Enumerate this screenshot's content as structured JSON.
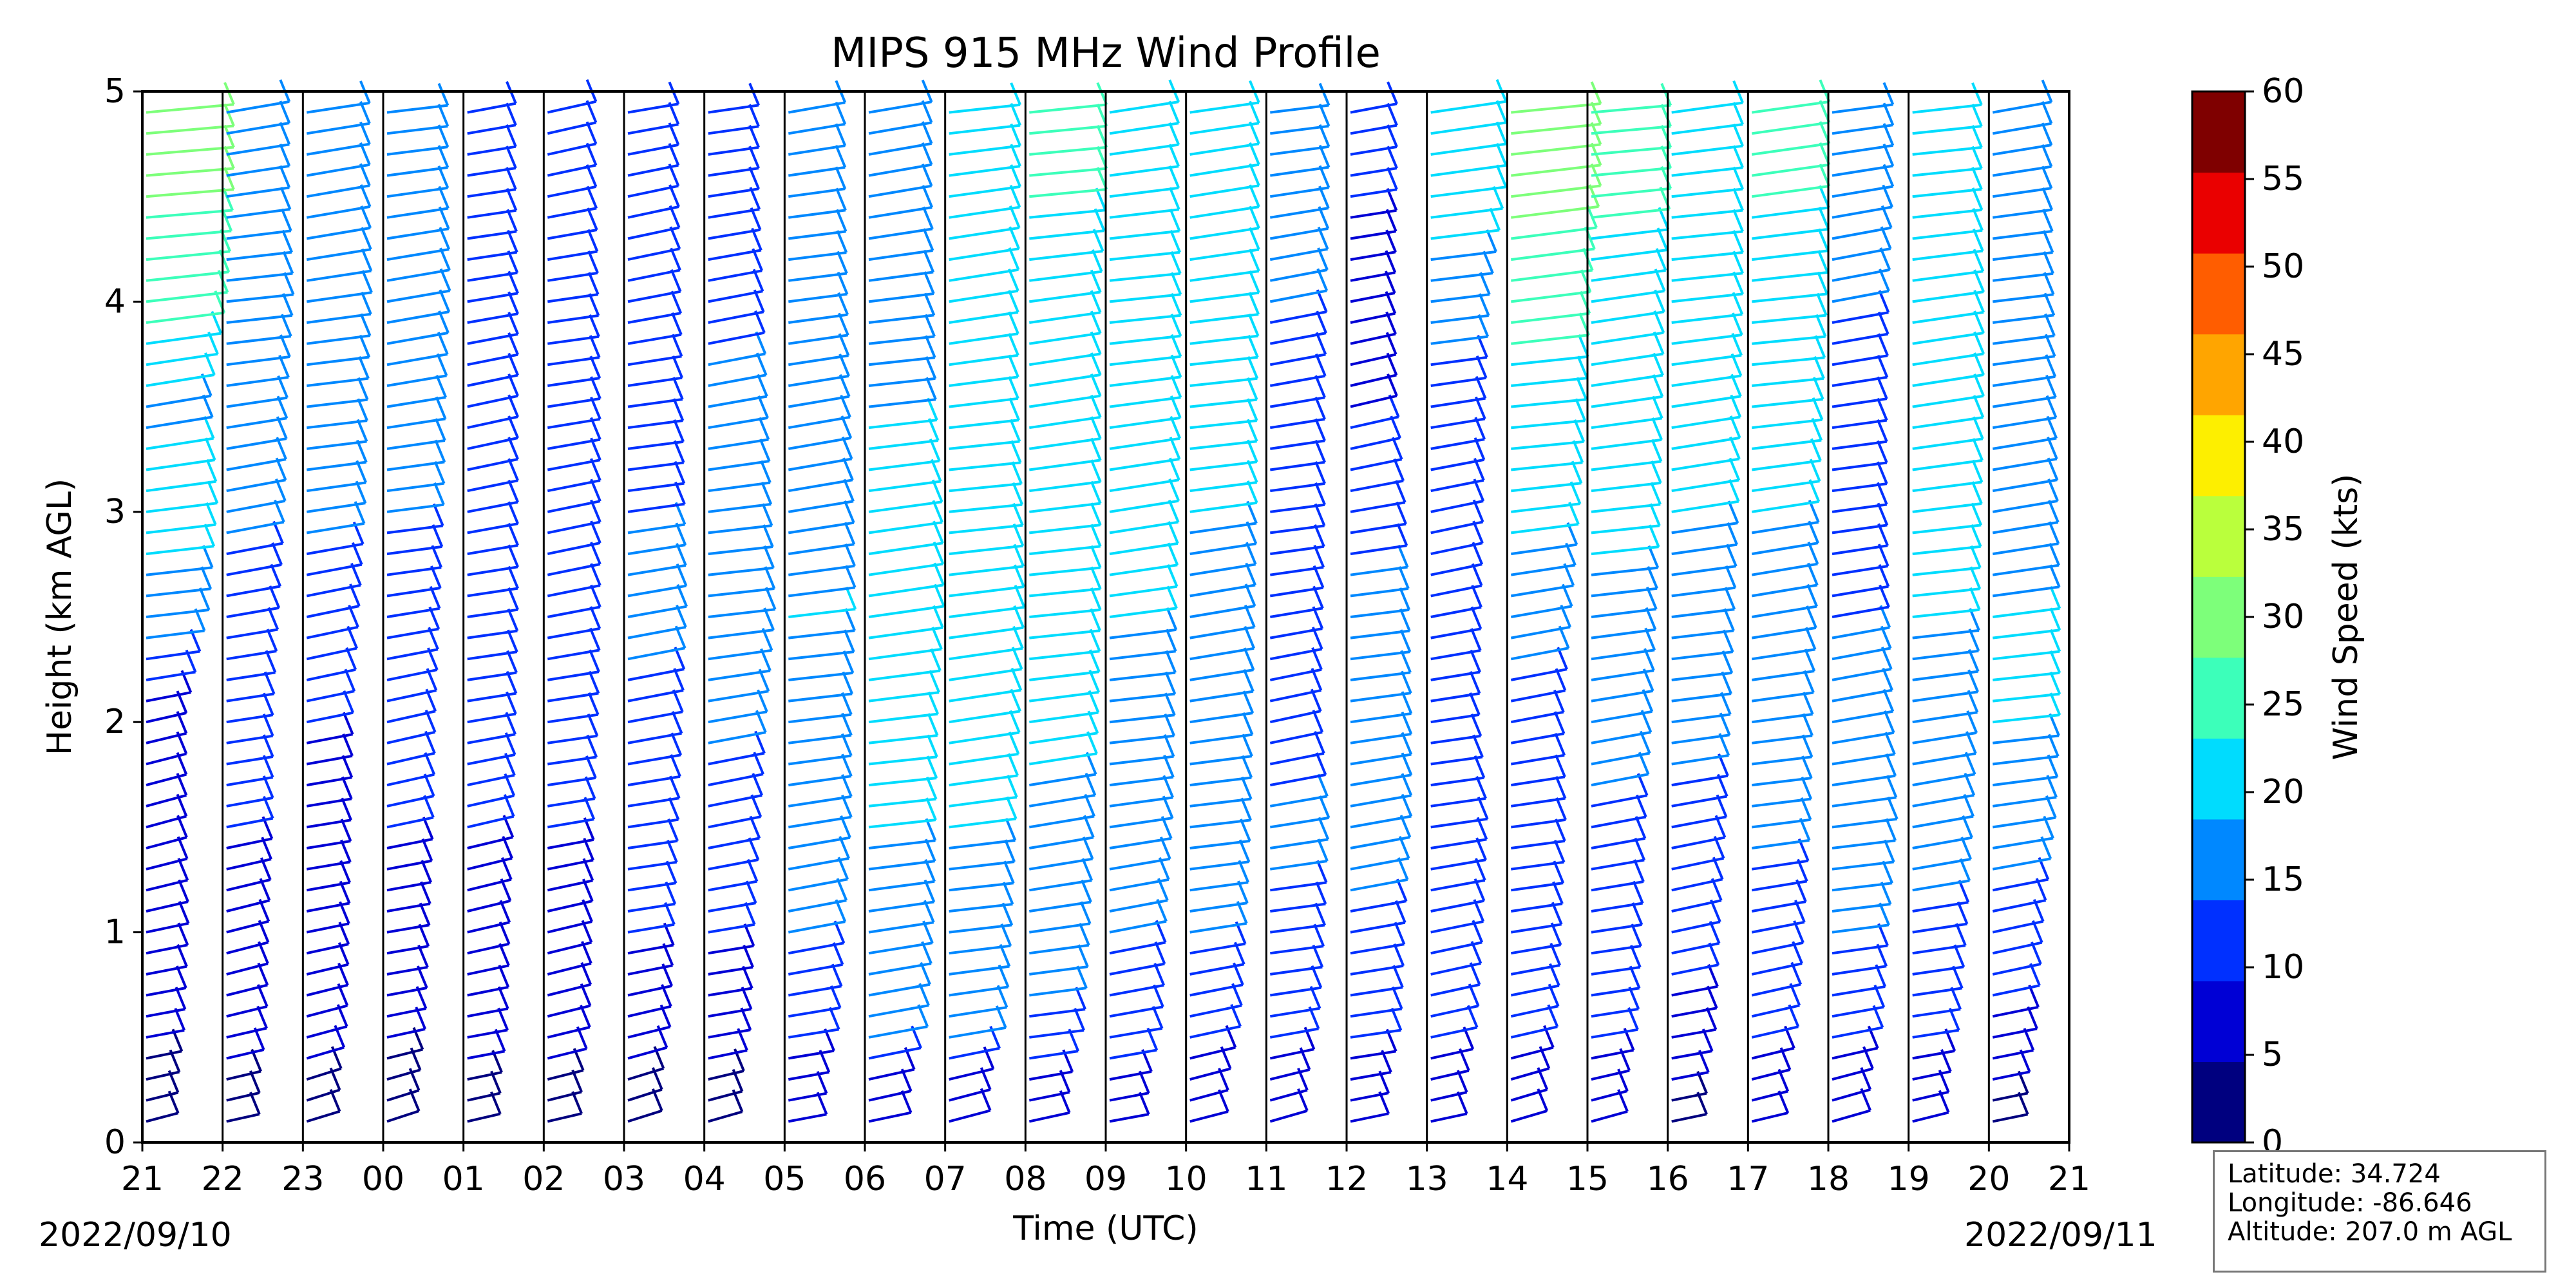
{
  "chart_data": {
    "type": "wind_barbs",
    "title": "MIPS 915 MHz Wind Profile",
    "xlabel": "Time (UTC)",
    "ylabel": "Height (km AGL)",
    "ylim": [
      0,
      5
    ],
    "y_ticks": [
      "0",
      "1",
      "2",
      "3",
      "4",
      "5"
    ],
    "x_ticks": [
      "21",
      "22",
      "23",
      "00",
      "01",
      "02",
      "03",
      "04",
      "05",
      "06",
      "07",
      "08",
      "09",
      "10",
      "11",
      "12",
      "13",
      "14",
      "15",
      "16",
      "17",
      "18",
      "19",
      "20",
      "21"
    ],
    "start_date": "2022/09/10",
    "end_date": "2022/09/11",
    "colorbar": {
      "label": "Wind Speed (kts)",
      "ticks": [
        "0",
        "5",
        "10",
        "15",
        "20",
        "25",
        "30",
        "35",
        "40",
        "45",
        "50",
        "55",
        "60"
      ],
      "colors": [
        "#00007f",
        "#0000d5",
        "#0030ff",
        "#0088ff",
        "#00dcfe",
        "#3cffba",
        "#7dff7a",
        "#baff3c",
        "#fdef00",
        "#ffa500",
        "#ff5d00",
        "#ea0000",
        "#7f0000"
      ]
    },
    "series": [
      {
        "hour": "21",
        "speeds_low_kts": [
          6,
          8,
          7
        ],
        "speeds_mid_kts": [
          7,
          18,
          22
        ],
        "speeds_high_kts": [
          19,
          27,
          30
        ]
      },
      {
        "hour": "22",
        "speeds_low_kts": [
          7,
          8,
          10
        ],
        "speeds_mid_kts": [
          10,
          13,
          16
        ],
        "speeds_high_kts": [
          17,
          20,
          18
        ]
      },
      {
        "hour": "23",
        "speeds_low_kts": [
          7,
          8,
          9
        ],
        "speeds_mid_kts": [
          10,
          13,
          16
        ],
        "speeds_high_kts": [
          17,
          19,
          18
        ]
      },
      {
        "hour": "00",
        "speeds_low_kts": [
          6,
          8,
          10
        ],
        "speeds_mid_kts": [
          11,
          13,
          15
        ],
        "speeds_high_kts": [
          16,
          18,
          17
        ]
      },
      {
        "hour": "01",
        "speeds_low_kts": [
          7,
          8,
          10
        ],
        "speeds_mid_kts": [
          11,
          12,
          12
        ],
        "speeds_high_kts": [
          12,
          12,
          11
        ]
      },
      {
        "hour": "02",
        "speeds_low_kts": [
          8,
          9,
          10
        ],
        "speeds_mid_kts": [
          12,
          13,
          13
        ],
        "speeds_high_kts": [
          13,
          12,
          11
        ]
      },
      {
        "hour": "03",
        "speeds_low_kts": [
          8,
          10,
          12
        ],
        "speeds_mid_kts": [
          14,
          16,
          15
        ],
        "speeds_high_kts": [
          14,
          13,
          12
        ]
      },
      {
        "hour": "04",
        "speeds_low_kts": [
          8,
          10,
          13
        ],
        "speeds_mid_kts": [
          16,
          20,
          18
        ],
        "speeds_high_kts": [
          16,
          14,
          12
        ]
      },
      {
        "hour": "05",
        "speeds_low_kts": [
          12,
          15,
          18
        ],
        "speeds_mid_kts": [
          18,
          20,
          19
        ],
        "speeds_high_kts": [
          17,
          16,
          15
        ]
      },
      {
        "hour": "06",
        "speeds_low_kts": [
          16,
          19,
          20
        ],
        "speeds_mid_kts": [
          21,
          24,
          23
        ],
        "speeds_high_kts": [
          20,
          19,
          18
        ]
      },
      {
        "hour": "07",
        "speeds_low_kts": [
          15,
          18,
          20
        ],
        "speeds_mid_kts": [
          22,
          24,
          23
        ],
        "speeds_high_kts": [
          21,
          21,
          22
        ]
      },
      {
        "hour": "08",
        "speeds_low_kts": [
          14,
          17,
          19
        ],
        "speeds_mid_kts": [
          21,
          22,
          22
        ],
        "speeds_high_kts": [
          22,
          22,
          25
        ]
      },
      {
        "hour": "09",
        "speeds_low_kts": [
          13,
          15,
          18
        ],
        "speeds_mid_kts": [
          19,
          20,
          21
        ],
        "speeds_high_kts": [
          22,
          22,
          21
        ]
      },
      {
        "hour": "10",
        "speeds_low_kts": [
          12,
          15,
          17
        ],
        "speeds_mid_kts": [
          18,
          19,
          20
        ],
        "speeds_high_kts": [
          20,
          21,
          21
        ]
      },
      {
        "hour": "11",
        "speeds_low_kts": [
          11,
          14,
          16
        ],
        "speeds_mid_kts": [
          12,
          13,
          14
        ],
        "speeds_high_kts": [
          14,
          15,
          16
        ]
      },
      {
        "hour": "12",
        "speeds_low_kts": [
          12,
          14,
          17
        ],
        "speeds_mid_kts": [
          17,
          16,
          14
        ],
        "speeds_high_kts": [
          10,
          9,
          10
        ]
      },
      {
        "hour": "13",
        "speeds_low_kts": [
          10,
          13,
          15
        ],
        "speeds_mid_kts": [
          11,
          12,
          13
        ],
        "speeds_high_kts": [
          14,
          16,
          24
        ]
      },
      {
        "hour": "14",
        "speeds_low_kts": [
          10,
          12,
          14
        ],
        "speeds_mid_kts": [
          13,
          17,
          21
        ],
        "speeds_high_kts": [
          24,
          26,
          31
        ]
      },
      {
        "hour": "15",
        "speeds_low_kts": [
          10,
          12,
          14
        ],
        "speeds_mid_kts": [
          17,
          19,
          21
        ],
        "speeds_high_kts": [
          22,
          23,
          26
        ]
      },
      {
        "hour": "16",
        "speeds_low_kts": [
          9,
          11,
          14
        ],
        "speeds_mid_kts": [
          16,
          18,
          20
        ],
        "speeds_high_kts": [
          21,
          22,
          22
        ]
      },
      {
        "hour": "17",
        "speeds_low_kts": [
          10,
          13,
          16
        ],
        "speeds_mid_kts": [
          17,
          19,
          20
        ],
        "speeds_high_kts": [
          22,
          24,
          25
        ]
      },
      {
        "hour": "18",
        "speeds_low_kts": [
          12,
          15,
          19
        ],
        "speeds_mid_kts": [
          17,
          15,
          14
        ],
        "speeds_high_kts": [
          14,
          15,
          17
        ]
      },
      {
        "hour": "19",
        "speeds_low_kts": [
          10,
          14,
          17
        ],
        "speeds_mid_kts": [
          19,
          20,
          21
        ],
        "speeds_high_kts": [
          22,
          22,
          21
        ]
      },
      {
        "hour": "20",
        "speeds_low_kts": [
          9,
          12,
          18
        ],
        "speeds_mid_kts": [
          20,
          20,
          19
        ],
        "speeds_high_kts": [
          18,
          17,
          16
        ]
      }
    ]
  },
  "info": {
    "latitude": "Latitude: 34.724",
    "longitude": "Longitude: -86.646",
    "altitude": "Altitude: 207.0 m AGL"
  }
}
